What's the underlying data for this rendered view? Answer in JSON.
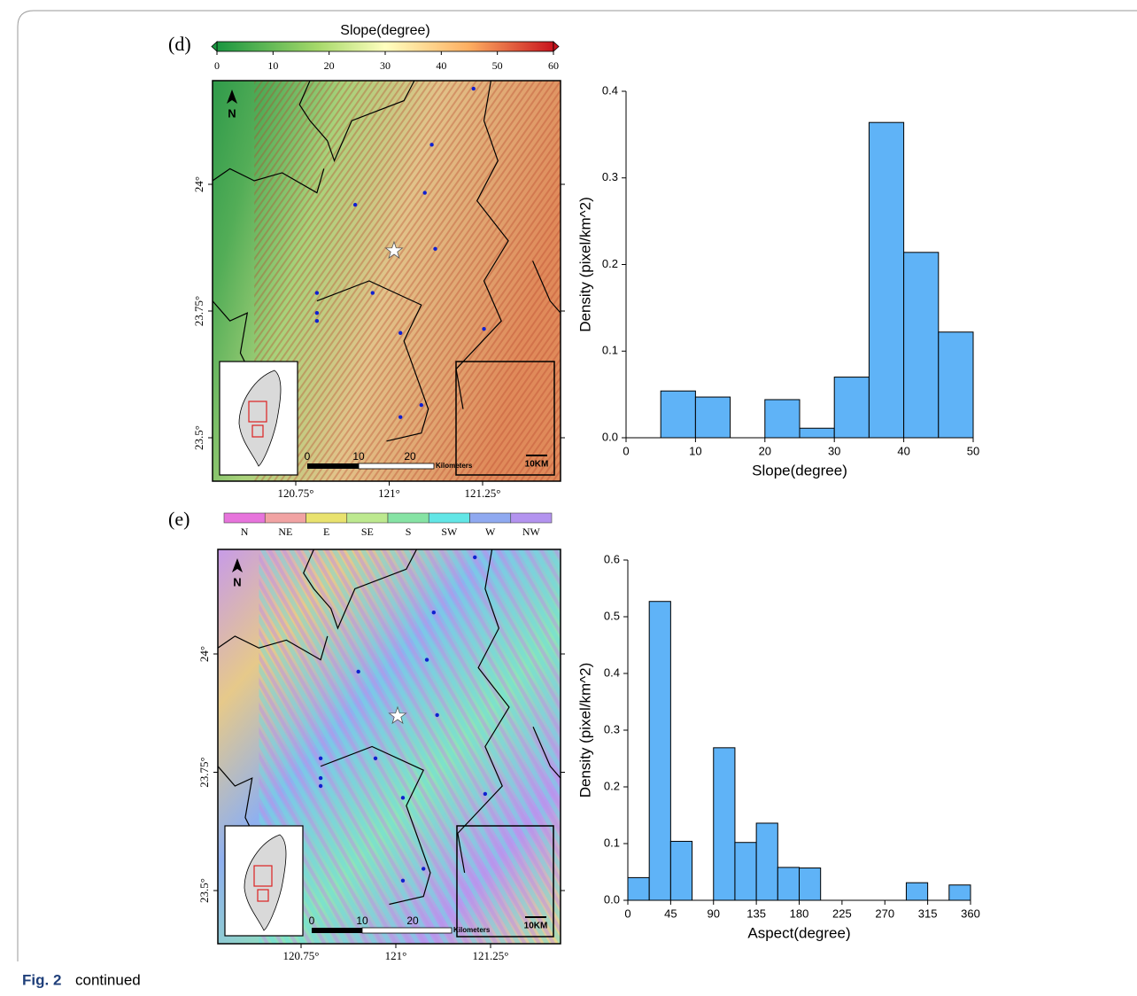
{
  "figure_label": "Fig. 2",
  "caption": "continued",
  "panels": [
    {
      "label": "(d)",
      "colorbar": {
        "title": "Slope(degree)",
        "lim": [
          0,
          60
        ],
        "ticks": [
          0,
          10,
          20,
          30,
          40,
          50,
          60
        ]
      },
      "map": {
        "north": "N",
        "lat_ticks": [
          {
            "value": 24,
            "label": "24°"
          },
          {
            "value": 23.75,
            "label": "23.75°"
          },
          {
            "value": 23.5,
            "label": "23.5°"
          }
        ],
        "lon_ticks": [
          {
            "value": 120.75,
            "label": "120.75°"
          },
          {
            "value": 121,
            "label": "121°"
          },
          {
            "value": 121.25,
            "label": "121.25°"
          }
        ],
        "scale_ticks": [
          0,
          10,
          20
        ],
        "scale_unit": "Kilometers",
        "inset_scale": "10KM"
      }
    },
    {
      "label": "(e)",
      "colorbar": {
        "categories": [
          "N",
          "NE",
          "E",
          "SE",
          "S",
          "SW",
          "W",
          "NW"
        ],
        "colors": [
          "#e774dc",
          "#f1a3a3",
          "#e9e26e",
          "#bde98f",
          "#86e3a4",
          "#62e6e6",
          "#8fa9f0",
          "#b393ef"
        ]
      },
      "map": {
        "north": "N",
        "lat_ticks": [
          {
            "value": 24,
            "label": "24°"
          },
          {
            "value": 23.75,
            "label": "23.75°"
          },
          {
            "value": 23.5,
            "label": "23.5°"
          }
        ],
        "lon_ticks": [
          {
            "value": 120.75,
            "label": "120.75°"
          },
          {
            "value": 121,
            "label": "121°"
          },
          {
            "value": 121.25,
            "label": "121.25°"
          }
        ],
        "scale_ticks": [
          0,
          10,
          20
        ],
        "scale_unit": "Kilometers",
        "inset_scale": "10KM"
      }
    }
  ],
  "chart_data": [
    {
      "type": "histogram",
      "x_label": "Slope(degree)",
      "y_label": "Density (pixel/km^2)",
      "bins": [
        0,
        5,
        10,
        15,
        20,
        25,
        30,
        35,
        40,
        45,
        50
      ],
      "values": [
        0,
        0.054,
        0.047,
        0,
        0.044,
        0.011,
        0.07,
        0.364,
        0.214,
        0.122
      ],
      "color": "#5fb3f7",
      "xlim": [
        0,
        50
      ],
      "xticks": [
        0,
        10,
        20,
        30,
        40,
        50
      ],
      "ylim": [
        0,
        0.4
      ],
      "yticks": [
        {
          "value": 0,
          "label": "0.0"
        },
        0.1,
        0.2,
        0.3,
        0.4
      ]
    },
    {
      "type": "histogram",
      "x_label": "Aspect(degree)",
      "y_label": "Density (pixel/km^2)",
      "bins": [
        0,
        22.5,
        45,
        67.5,
        90,
        112.5,
        135,
        157.5,
        180,
        202.5,
        225,
        247.5,
        270,
        292.5,
        315,
        337.5,
        360
      ],
      "values": [
        0.04,
        0.527,
        0.104,
        0,
        0.269,
        0.102,
        0.136,
        0.058,
        0.057,
        0,
        0,
        0,
        0,
        0.031,
        0,
        0.027
      ],
      "color": "#5fb3f7",
      "xlim": [
        0,
        360
      ],
      "xticks": [
        0,
        45,
        90,
        135,
        180,
        225,
        270,
        315,
        360
      ],
      "ylim": [
        0,
        0.6
      ],
      "yticks": [
        {
          "value": 0,
          "label": "0.0"
        },
        0.1,
        0.2,
        0.3,
        0.4,
        0.5,
        0.6
      ]
    }
  ]
}
